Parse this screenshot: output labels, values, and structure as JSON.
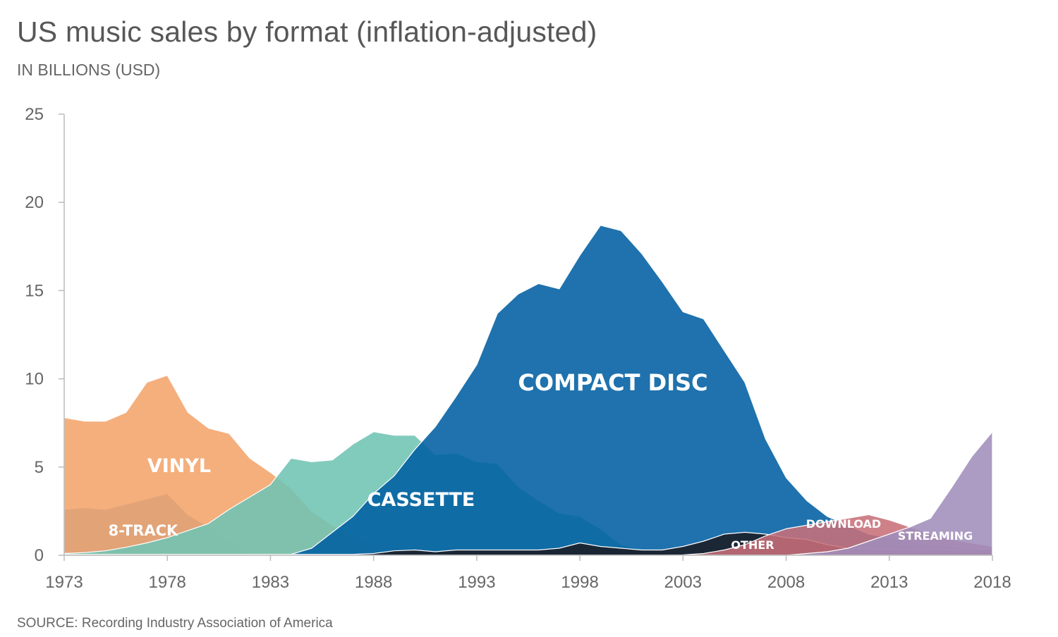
{
  "chart_data": {
    "type": "area",
    "title": "US music sales by format (inflation-adjusted)",
    "subtitle": "IN BILLIONS (USD)",
    "source": "SOURCE: Recording Industry Association of America",
    "xlabel": "",
    "ylabel": "",
    "x": [
      1973,
      1974,
      1975,
      1976,
      1977,
      1978,
      1979,
      1980,
      1981,
      1982,
      1983,
      1984,
      1985,
      1986,
      1987,
      1988,
      1989,
      1990,
      1991,
      1992,
      1993,
      1994,
      1995,
      1996,
      1997,
      1998,
      1999,
      2000,
      2001,
      2002,
      2003,
      2004,
      2005,
      2006,
      2007,
      2008,
      2009,
      2010,
      2011,
      2012,
      2013,
      2014,
      2015,
      2016,
      2017,
      2018
    ],
    "xlim": [
      1973,
      2018
    ],
    "ylim": [
      0,
      25
    ],
    "x_ticks": [
      "1973",
      "1978",
      "1983",
      "1988",
      "1993",
      "1998",
      "2003",
      "2008",
      "2013",
      "2018"
    ],
    "y_ticks": [
      "0",
      "5",
      "10",
      "15",
      "20",
      "25"
    ],
    "grid": false,
    "legend": "none (series labeled directly on areas)",
    "series": [
      {
        "name": "8-TRACK",
        "color": "#5b8fc7",
        "values": [
          2.6,
          2.7,
          2.6,
          2.9,
          3.2,
          3.5,
          2.3,
          1.6,
          0.8,
          0.05,
          0,
          0,
          0,
          0,
          0,
          0,
          0,
          0,
          0,
          0,
          0,
          0,
          0,
          0,
          0,
          0,
          0,
          0,
          0,
          0,
          0,
          0,
          0,
          0,
          0,
          0,
          0,
          0,
          0,
          0,
          0,
          0,
          0,
          0,
          0,
          0
        ]
      },
      {
        "name": "VINYL",
        "color": "#f2a46b",
        "values": [
          7.8,
          7.6,
          7.6,
          8.1,
          9.8,
          10.2,
          8.1,
          7.2,
          6.9,
          5.5,
          4.7,
          3.8,
          2.5,
          1.7,
          1.1,
          0.6,
          0.2,
          0.05,
          0,
          0,
          0,
          0,
          0,
          0,
          0,
          0,
          0,
          0,
          0,
          0,
          0,
          0,
          0,
          0,
          0,
          0,
          0,
          0,
          0,
          0,
          0,
          0,
          0,
          0,
          0,
          0
        ]
      },
      {
        "name": "CASSETTE",
        "color": "#6fc4b4",
        "values": [
          0.1,
          0.15,
          0.25,
          0.45,
          0.7,
          1.0,
          1.4,
          1.8,
          2.6,
          3.3,
          4.0,
          5.5,
          5.3,
          5.4,
          6.3,
          7.0,
          6.8,
          6.8,
          5.7,
          5.8,
          5.3,
          5.2,
          3.9,
          3.1,
          2.4,
          2.2,
          1.5,
          0.6,
          0.3,
          0.15,
          0.05,
          0,
          0,
          0,
          0,
          0,
          0,
          0,
          0,
          0,
          0,
          0,
          0,
          0,
          0,
          0
        ]
      },
      {
        "name": "COMPACT DISC",
        "color": "#005ea2",
        "values": [
          0,
          0,
          0,
          0,
          0,
          0,
          0,
          0,
          0,
          0,
          0,
          0.05,
          0.4,
          1.3,
          2.2,
          3.5,
          4.5,
          6.0,
          7.3,
          9.0,
          10.8,
          13.7,
          14.8,
          15.4,
          15.1,
          17.0,
          18.7,
          18.4,
          17.1,
          15.5,
          13.8,
          13.4,
          11.6,
          9.8,
          6.6,
          4.4,
          3.1,
          2.2,
          1.7,
          1.2,
          1.0,
          0.8,
          0.6,
          0.5,
          0.4,
          0.3
        ]
      },
      {
        "name": "OTHER",
        "color": "#1d1d26",
        "values": [
          0.05,
          0.05,
          0.05,
          0.05,
          0.05,
          0.05,
          0.05,
          0.05,
          0.05,
          0.05,
          0.05,
          0.05,
          0.05,
          0.05,
          0.05,
          0.1,
          0.25,
          0.3,
          0.2,
          0.3,
          0.3,
          0.3,
          0.3,
          0.3,
          0.4,
          0.7,
          0.5,
          0.4,
          0.3,
          0.3,
          0.5,
          0.8,
          1.2,
          1.3,
          1.2,
          1.0,
          0.9,
          0.6,
          0.4,
          0.35,
          0.35,
          0.3,
          0.3,
          0.3,
          0.3,
          0.3
        ]
      },
      {
        "name": "DOWNLOAD",
        "color": "#c8707a",
        "values": [
          0,
          0,
          0,
          0,
          0,
          0,
          0,
          0,
          0,
          0,
          0,
          0,
          0,
          0,
          0,
          0,
          0,
          0,
          0,
          0,
          0,
          0,
          0,
          0,
          0,
          0,
          0,
          0,
          0,
          0,
          0.02,
          0.1,
          0.3,
          0.6,
          1.1,
          1.5,
          1.7,
          1.9,
          2.1,
          2.3,
          2.0,
          1.6,
          1.2,
          0.9,
          0.7,
          0.5
        ]
      },
      {
        "name": "STREAMING",
        "color": "#a08dbb",
        "values": [
          0,
          0,
          0,
          0,
          0,
          0,
          0,
          0,
          0,
          0,
          0,
          0,
          0,
          0,
          0,
          0,
          0,
          0,
          0,
          0,
          0,
          0,
          0,
          0,
          0,
          0,
          0,
          0,
          0,
          0,
          0,
          0,
          0,
          0,
          0,
          0,
          0.1,
          0.2,
          0.4,
          0.8,
          1.2,
          1.6,
          2.1,
          3.8,
          5.6,
          7.0
        ]
      }
    ]
  }
}
